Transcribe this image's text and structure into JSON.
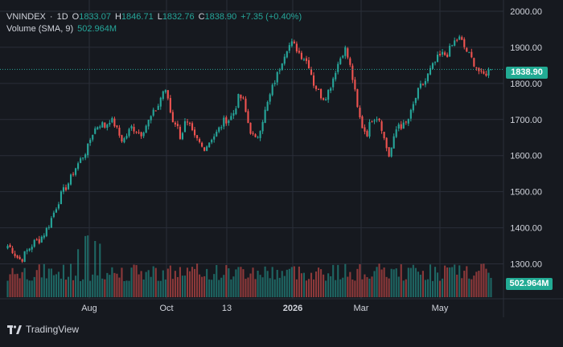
{
  "legend": {
    "symbol": "VNINDEX",
    "interval": "1D",
    "open_label": "O",
    "open": "1833.07",
    "high_label": "H",
    "high": "1846.71",
    "low_label": "L",
    "low": "1832.76",
    "close_label": "C",
    "close": "1838.90",
    "change": "+7.35 (+0.40%)",
    "volume_label": "Volume (SMA, 9)",
    "volume_value": "502.964M"
  },
  "price_tag": "1838.90",
  "volume_tag": "502.964M",
  "brand": "TradingView",
  "colors": {
    "up": "#26a69a",
    "down": "#ef5350",
    "background": "#16191f",
    "grid": "#2a2e39",
    "price_line": "#26a69a"
  },
  "chart_data": {
    "type": "candlestick",
    "y_ticks": [
      "2000.00",
      "1900.00",
      "1800.00",
      "1700.00",
      "1600.00",
      "1500.00",
      "1400.00",
      "1300.00"
    ],
    "x_ticks": [
      "Aug",
      "Oct",
      "13",
      "2026",
      "Mar",
      "May"
    ],
    "ylim": [
      1270,
      2000
    ],
    "last_price": 1838.9,
    "close_path": [
      1350,
      1340,
      1320,
      1310,
      1330,
      1345,
      1360,
      1365,
      1380,
      1400,
      1430,
      1460,
      1490,
      1510,
      1530,
      1560,
      1580,
      1600,
      1620,
      1660,
      1680,
      1690,
      1680,
      1700,
      1690,
      1660,
      1640,
      1660,
      1680,
      1670,
      1660,
      1680,
      1700,
      1720,
      1740,
      1780,
      1770,
      1700,
      1690,
      1650,
      1690,
      1680,
      1650,
      1640,
      1620,
      1630,
      1650,
      1660,
      1680,
      1700,
      1700,
      1720,
      1760,
      1760,
      1700,
      1660,
      1640,
      1680,
      1720,
      1760,
      1800,
      1830,
      1870,
      1900,
      1910,
      1900,
      1880,
      1870,
      1850,
      1800,
      1780,
      1760,
      1770,
      1800,
      1840,
      1870,
      1900,
      1860,
      1800,
      1720,
      1680,
      1660,
      1700,
      1710,
      1700,
      1640,
      1600,
      1640,
      1690,
      1680,
      1690,
      1720,
      1760,
      1790,
      1800,
      1830,
      1850,
      1870,
      1880,
      1880,
      1900,
      1920,
      1925,
      1900,
      1880,
      1860,
      1840,
      1820,
      1830,
      1839
    ],
    "volume_series_name": "Volume (SMA, 9)"
  }
}
